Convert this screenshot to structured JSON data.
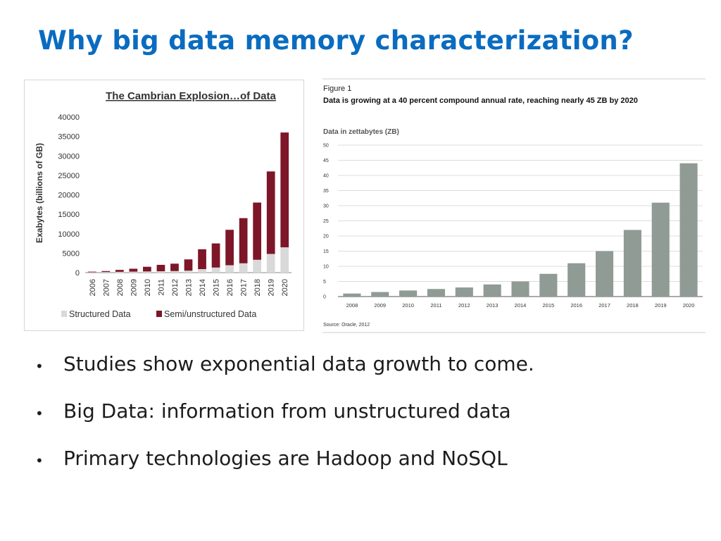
{
  "slide": {
    "title": "Why big data memory characterization?",
    "bullets": [
      "Studies show exponential data growth to come.",
      "Big Data: information from unstructured data",
      "Primary technologies are Hadoop and NoSQL"
    ],
    "bullet_glyph": "•"
  },
  "colors": {
    "title": "#0a6cc0",
    "structured": "#d9d9d9",
    "semi": "#7d1628",
    "zb_bar": "#8f9b94"
  },
  "chart_data": [
    {
      "type": "bar",
      "stacked": true,
      "title": "The Cambrian Explosion…of Data",
      "xlabel": "",
      "ylabel": "Exabytes (billions of GB)",
      "ylim": [
        0,
        40000
      ],
      "yticks": [
        "0",
        "5000",
        "10000",
        "15000",
        "20000",
        "25000",
        "30000",
        "35000",
        "40000"
      ],
      "categories": [
        "2006",
        "2007",
        "2008",
        "2009",
        "2010",
        "2011",
        "2012",
        "2013",
        "2014",
        "2015",
        "2016",
        "2017",
        "2018",
        "2019",
        "2020"
      ],
      "series": [
        {
          "name": "Structured Data",
          "values": [
            100,
            150,
            200,
            250,
            300,
            350,
            400,
            500,
            900,
            1300,
            1900,
            2400,
            3300,
            4800,
            6500
          ]
        },
        {
          "name": "Semi/unstructured Data",
          "values": [
            150,
            250,
            500,
            750,
            1200,
            1650,
            1900,
            2900,
            5100,
            6200,
            9100,
            11600,
            14700,
            21200,
            29500
          ]
        }
      ],
      "legend": "bottom"
    },
    {
      "type": "bar",
      "figure_label": "Figure 1",
      "title": "Data is growing at a 40 percent compound annual rate, reaching nearly 45 ZB by 2020",
      "subtitle": "Data in zettabytes (ZB)",
      "source": "Source: Oracle, 2012",
      "xlabel": "",
      "ylabel": "",
      "ylim": [
        0,
        50
      ],
      "yticks": [
        "0",
        "5",
        "10",
        "15",
        "20",
        "25",
        "30",
        "35",
        "40",
        "45",
        "50"
      ],
      "categories": [
        "2008",
        "2009",
        "2010",
        "2011",
        "2012",
        "2013",
        "2014",
        "2015",
        "2016",
        "2017",
        "2018",
        "2019",
        "2020"
      ],
      "values": [
        1,
        1.5,
        2,
        2.5,
        3,
        4,
        5,
        7.5,
        11,
        15,
        22,
        31,
        44
      ],
      "grid": true
    }
  ]
}
